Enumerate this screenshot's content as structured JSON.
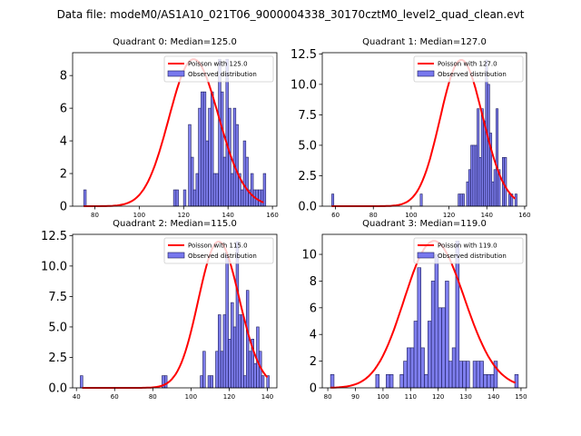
{
  "suptitle": "Data file: modeM0/AS1A10_021T06_9000004338_30170cztM0_level2_quad_clean.evt",
  "colors": {
    "bar_fill": "#7878ee",
    "bar_edge": "#1a1a5a",
    "curve": "#ff0000"
  },
  "chart_data": [
    {
      "type": "bar",
      "title": "Quadrant 0: Median=125.0",
      "legend": [
        "Poisson with 125.0",
        "Observed distribution"
      ],
      "legend_position": "top-right",
      "xlim": [
        70,
        162
      ],
      "ylim": [
        0,
        9.4
      ],
      "xticks": [
        80,
        100,
        120,
        140,
        160
      ],
      "yticks": [
        0,
        2,
        4,
        6,
        8
      ],
      "ytick_labels": [
        "0",
        "2",
        "4",
        "6",
        "8"
      ],
      "bin_range": [
        75,
        157
      ],
      "counts": [
        1,
        0,
        0,
        0,
        0,
        0,
        0,
        0,
        0,
        0,
        0,
        0,
        0,
        0,
        0,
        0,
        0,
        0,
        0,
        0,
        0,
        0,
        0,
        0,
        0,
        0,
        0,
        0,
        0,
        0,
        0,
        0,
        0,
        0,
        0,
        0,
        1,
        1,
        0,
        0,
        1,
        0,
        5,
        3,
        1,
        2,
        6,
        7,
        7,
        4,
        6,
        7,
        2,
        2,
        9,
        7,
        3,
        9,
        6,
        2,
        6,
        5,
        2,
        1,
        4,
        3,
        1,
        2,
        1,
        1,
        1,
        1,
        2
      ],
      "poisson_mean": 125.0,
      "curve_peak": 9.0,
      "curve_range": [
        75,
        156
      ]
    },
    {
      "type": "bar",
      "title": "Quadrant 1: Median=127.0",
      "legend": [
        "Poisson with 127.0",
        "Observed distribution"
      ],
      "legend_position": "top-right",
      "xlim": [
        53,
        161
      ],
      "ylim": [
        0,
        12.6
      ],
      "xticks": [
        60,
        80,
        100,
        120,
        140,
        160
      ],
      "yticks": [
        0,
        2.5,
        5,
        7.5,
        10,
        12.5
      ],
      "ytick_labels": [
        "0.0",
        "2.5",
        "5.0",
        "7.5",
        "10.0",
        "12.5"
      ],
      "bin_range": [
        58,
        156
      ],
      "counts": [
        1,
        0,
        0,
        0,
        0,
        0,
        0,
        0,
        0,
        0,
        0,
        0,
        0,
        0,
        0,
        0,
        0,
        0,
        0,
        0,
        0,
        0,
        0,
        0,
        0,
        0,
        0,
        0,
        0,
        0,
        0,
        0,
        0,
        0,
        0,
        0,
        0,
        0,
        0,
        0,
        0,
        0,
        1,
        0,
        0,
        0,
        0,
        0,
        0,
        0,
        0,
        0,
        0,
        0,
        0,
        0,
        0,
        0,
        0,
        0,
        1,
        1,
        1,
        0,
        2,
        3,
        5,
        5,
        5,
        8,
        4,
        8,
        7,
        12,
        10,
        6,
        2,
        3,
        8,
        3,
        0,
        4,
        4,
        0,
        1,
        1,
        0,
        1
      ],
      "poisson_mean": 127.0,
      "curve_peak": 12.0,
      "curve_range": [
        58,
        155
      ]
    },
    {
      "type": "bar",
      "title": "Quadrant 2: Median=115.0",
      "legend": [
        "Poisson with 115.0",
        "Observed distribution"
      ],
      "legend_position": "top-right",
      "xlim": [
        38,
        145
      ],
      "ylim": [
        0,
        12.6
      ],
      "xticks": [
        40,
        60,
        80,
        100,
        120,
        140
      ],
      "yticks": [
        0,
        2.5,
        5,
        7.5,
        10,
        12.5
      ],
      "ytick_labels": [
        "0.0",
        "2.5",
        "5.0",
        "7.5",
        "10.0",
        "12.5"
      ],
      "bin_range": [
        42,
        141
      ],
      "counts": [
        1,
        0,
        0,
        0,
        0,
        0,
        0,
        0,
        0,
        0,
        0,
        0,
        0,
        0,
        0,
        0,
        0,
        0,
        0,
        0,
        0,
        0,
        0,
        0,
        0,
        0,
        0,
        0,
        0,
        0,
        0,
        0,
        1,
        1,
        0,
        0,
        0,
        0,
        0,
        0,
        0,
        0,
        0,
        0,
        0,
        0,
        0,
        1,
        3,
        0,
        1,
        1,
        0,
        3,
        6,
        3,
        6,
        11,
        4,
        7,
        5,
        12,
        6,
        6,
        1,
        8,
        3,
        4,
        2,
        5,
        3,
        1,
        0,
        1
      ],
      "poisson_mean": 115.0,
      "curve_peak": 12.0,
      "curve_range": [
        43,
        140
      ]
    },
    {
      "type": "bar",
      "title": "Quadrant 3: Median=119.0",
      "legend": [
        "Poisson with 119.0",
        "Observed distribution"
      ],
      "legend_position": "top-right",
      "xlim": [
        78,
        152
      ],
      "ylim": [
        0,
        11.5
      ],
      "xticks": [
        80,
        90,
        100,
        110,
        120,
        130,
        140,
        150
      ],
      "yticks": [
        0,
        2,
        4,
        6,
        8,
        10
      ],
      "ytick_labels": [
        "0",
        "2",
        "4",
        "6",
        "8",
        "10"
      ],
      "bin_range": [
        81,
        149
      ],
      "counts": [
        1,
        0,
        0,
        0,
        0,
        0,
        0,
        0,
        0,
        0,
        0,
        0,
        0,
        1,
        0,
        0,
        1,
        1,
        0,
        0,
        1,
        2,
        3,
        3,
        5,
        9,
        3,
        1,
        5,
        8,
        10,
        6,
        6,
        8,
        2,
        3,
        11,
        2,
        2,
        2,
        0,
        2,
        2,
        2,
        1,
        1,
        1,
        2,
        0,
        0,
        0,
        0,
        0,
        1
      ],
      "poisson_mean": 119.0,
      "curve_peak": 11.0,
      "curve_range": [
        81,
        148
      ]
    }
  ]
}
